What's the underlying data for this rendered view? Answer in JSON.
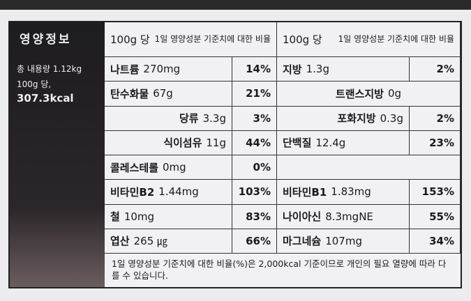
{
  "panel": {
    "title": "영양정보",
    "total": "총 내용량 1.12kg",
    "per": "100g 당,",
    "kcal": "307.3kcal"
  },
  "header": {
    "per_left": "100g 당",
    "ratio_left": "1일 영양성분 기준치에 대한 비율",
    "per_right": "100g 당",
    "ratio_right": "1일 영양성분 기준치에 대한 비율"
  },
  "rows": [
    {
      "left": {
        "name": "나트륨",
        "amount": "270mg",
        "pct": "14%"
      },
      "right": {
        "name": "지방",
        "amount": "1.3g",
        "pct": "2%"
      }
    },
    {
      "left": {
        "name": "탄수화물",
        "amount": "67g",
        "pct": "21%"
      },
      "right": {
        "name": "트랜스지방",
        "amount": "0g",
        "sub": true
      }
    },
    {
      "left": {
        "name": "당류",
        "amount": "3.3g",
        "pct": "3%",
        "sub": true
      },
      "right": {
        "name": "포화지방",
        "amount": "0.3g",
        "pct": "2%",
        "sub": true
      }
    },
    {
      "left": {
        "name": "식이섬유",
        "amount": "11g",
        "pct": "44%",
        "sub": true
      },
      "right": {
        "name": "단백질",
        "amount": "12.4g",
        "pct": "23%"
      }
    },
    {
      "left": {
        "name": "콜레스테롤",
        "amount": "0mg",
        "pct": "0%"
      },
      "right": null
    },
    {
      "left": {
        "name": "비타민B2",
        "amount": "1.44mg",
        "pct": "103%"
      },
      "right": {
        "name": "비타민B1",
        "amount": "1.83mg",
        "pct": "153%"
      }
    },
    {
      "left": {
        "name": "철",
        "amount": "10mg",
        "pct": "83%"
      },
      "right": {
        "name": "나이아신",
        "amount": "8.3mgNE",
        "pct": "55%"
      }
    },
    {
      "left": {
        "name": "엽산",
        "amount": "265 ㎍",
        "pct": "66%"
      },
      "right": {
        "name": "마그네슘",
        "amount": "107mg",
        "pct": "34%"
      }
    }
  ],
  "footer": "1일 영양성분 기준치에 대한 비율(%)은 2,000kcal 기준이므로 개인의 필요 열량에 따라 다를 수 있습니다."
}
